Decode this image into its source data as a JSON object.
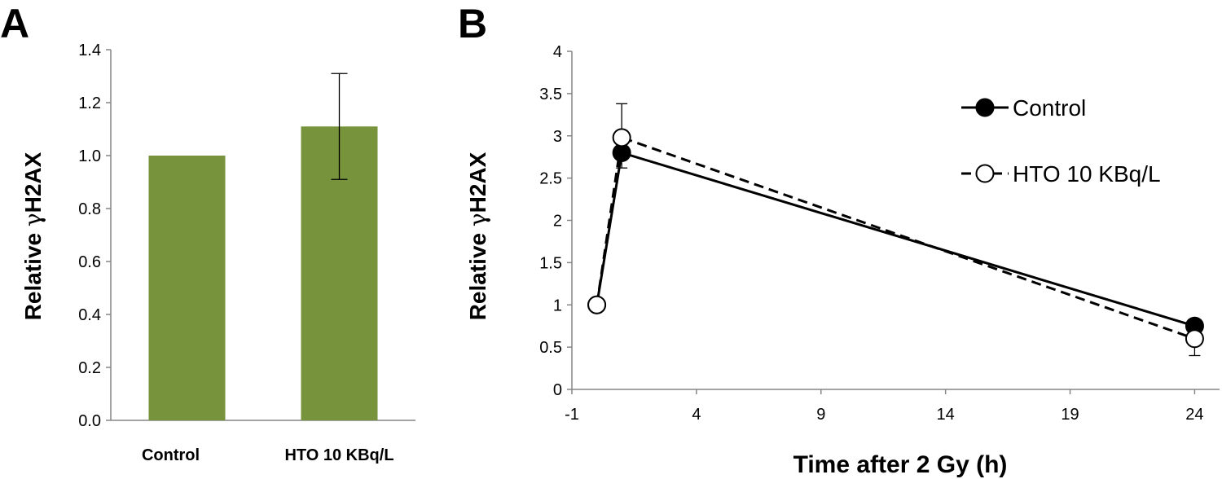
{
  "colors": {
    "bar": "#77933c",
    "axis": "#868686",
    "line": "#000000",
    "marker_open": "#ffffff"
  },
  "chart_data": [
    {
      "panel": "A",
      "type": "bar",
      "categories": [
        "Control",
        "HTO 10 KBq/L"
      ],
      "values": [
        1.0,
        1.11
      ],
      "errors": [
        0,
        0.2
      ],
      "ylabel_prefix": "Relative ",
      "ylabel_gamma": "γ",
      "ylabel_suffix": "H2AX",
      "ylim": [
        0,
        1.4
      ],
      "yticks": [
        "0.0",
        "0.2",
        "0.4",
        "0.6",
        "0.8",
        "1.0",
        "1.2",
        "1.4"
      ],
      "ytick_values": [
        0,
        0.2,
        0.4,
        0.6,
        0.8,
        1.0,
        1.2,
        1.4
      ],
      "grid": false
    },
    {
      "panel": "B",
      "type": "line",
      "xlabel": "Time after 2 Gy (h)",
      "ylabel_prefix": "Relative ",
      "ylabel_gamma": "γ",
      "ylabel_suffix": "H2AX",
      "xlim": [
        -1,
        25
      ],
      "ylim": [
        0,
        4
      ],
      "xticks": [
        "-1",
        "4",
        "9",
        "14",
        "19",
        "24"
      ],
      "xtick_values": [
        -1,
        4,
        9,
        14,
        19,
        24
      ],
      "yticks": [
        "0",
        "0.5",
        "1",
        "1.5",
        "2",
        "2.5",
        "3",
        "3.5",
        "4"
      ],
      "ytick_values": [
        0,
        0.5,
        1,
        1.5,
        2,
        2.5,
        3,
        3.5,
        4
      ],
      "series": [
        {
          "name": "Control",
          "marker": "filled",
          "dash": "solid",
          "x": [
            0,
            1,
            24
          ],
          "y": [
            1.0,
            2.8,
            0.75
          ],
          "err": [
            0,
            0.18,
            0.06
          ]
        },
        {
          "name": "HTO 10 KBq/L",
          "marker": "open",
          "dash": "dashed",
          "x": [
            0,
            1,
            24
          ],
          "y": [
            1.0,
            2.98,
            0.6
          ],
          "err": [
            0,
            0.4,
            0.2
          ]
        }
      ],
      "legend_position": "top-right",
      "grid": false
    }
  ]
}
